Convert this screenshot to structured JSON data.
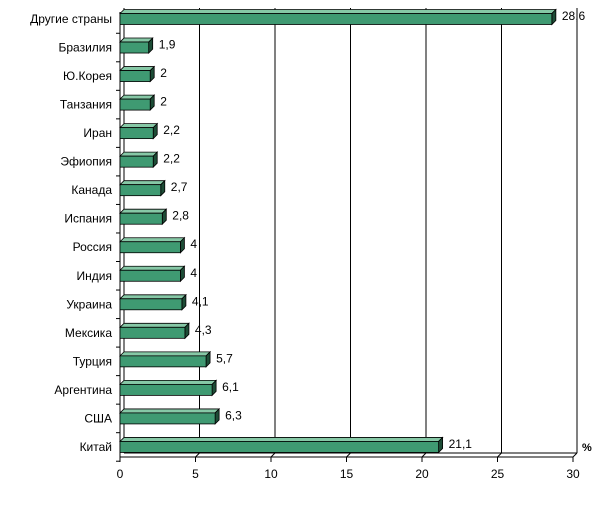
{
  "chart_data": {
    "type": "bar",
    "orientation": "horizontal",
    "categories": [
      "Другие страны",
      "Бразилия",
      "Ю.Корея",
      "Танзания",
      "Иран",
      "Эфиопия",
      "Канада",
      "Испания",
      "Россия",
      "Индия",
      "Украина",
      "Мексика",
      "Турция",
      "Аргентина",
      "США",
      "Китай"
    ],
    "values": [
      28.6,
      1.9,
      2,
      2,
      2.2,
      2.2,
      2.7,
      2.8,
      4,
      4,
      4.1,
      4.3,
      5.7,
      6.1,
      6.3,
      21.1
    ],
    "value_labels": [
      "28,6",
      "1,9",
      "2",
      "2",
      "2,2",
      "2,2",
      "2,7",
      "2,8",
      "4",
      "4",
      "4,1",
      "4,3",
      "5,7",
      "6,1",
      "6,3",
      "21,1"
    ],
    "x_ticks": [
      "0",
      "5",
      "10",
      "15",
      "20",
      "25",
      "30"
    ],
    "xlim": [
      0,
      30
    ],
    "unit_label": "%",
    "title": "",
    "xlabel": "",
    "ylabel": "",
    "grid": "vertical lines",
    "bar_color": "#3f9a72",
    "bar_top_color": "#86c8a6",
    "bar_side_color": "#1d4c36"
  }
}
